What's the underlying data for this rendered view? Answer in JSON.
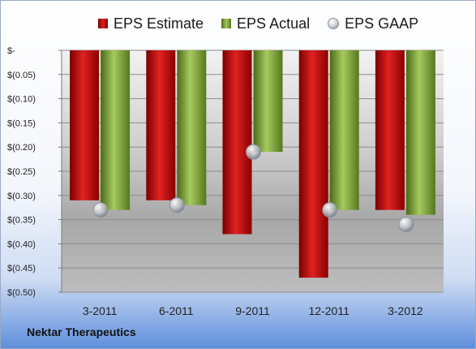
{
  "company": "Nektar Therapeutics",
  "legend": {
    "estimate": "EPS Estimate",
    "actual": "EPS Actual",
    "gaap": "EPS GAAP"
  },
  "colors": {
    "estimate": "#c01818",
    "actual": "#7ea23c",
    "gaap": "#c9ced6"
  },
  "chart_data": {
    "type": "bar",
    "categories": [
      "3-2011",
      "6-2011",
      "9-2011",
      "12-2011",
      "3-2012"
    ],
    "series": [
      {
        "name": "EPS Estimate",
        "values": [
          -0.31,
          -0.31,
          -0.38,
          -0.47,
          -0.33
        ]
      },
      {
        "name": "EPS Actual",
        "values": [
          -0.33,
          -0.32,
          -0.21,
          -0.33,
          -0.34
        ]
      },
      {
        "name": "EPS GAAP",
        "values": [
          -0.33,
          -0.32,
          -0.21,
          -0.33,
          -0.36
        ]
      }
    ],
    "ylim": [
      -0.5,
      0
    ],
    "yticks": [
      0,
      -0.05,
      -0.1,
      -0.15,
      -0.2,
      -0.25,
      -0.3,
      -0.35,
      -0.4,
      -0.45,
      -0.5
    ],
    "ytick_labels": [
      "$-",
      "$(0.05)",
      "$(0.10)",
      "$(0.15)",
      "$(0.20)",
      "$(0.25)",
      "$(0.30)",
      "$(0.35)",
      "$(0.40)",
      "$(0.45)",
      "$(0.50)"
    ],
    "grid": true,
    "legend_position": "top"
  }
}
